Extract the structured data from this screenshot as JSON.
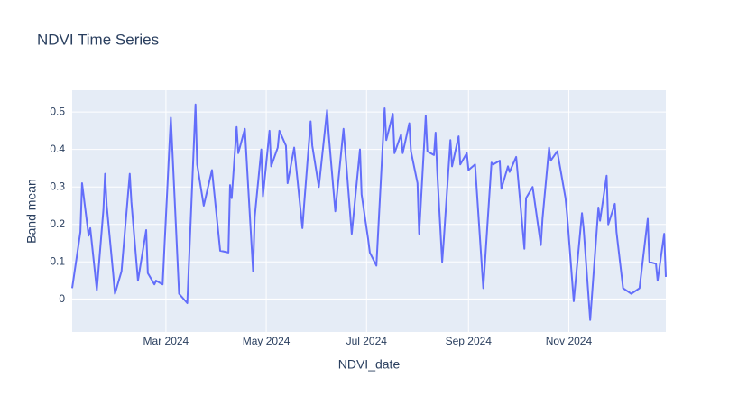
{
  "chart_data": {
    "type": "line",
    "title": "NDVI Time Series",
    "x_label": "NDVI_date",
    "y_label": "Band mean",
    "x": [
      "2024-01-04",
      "2024-01-09",
      "2024-01-10",
      "2024-01-14",
      "2024-01-15",
      "2024-01-19",
      "2024-01-23",
      "2024-01-24",
      "2024-01-25",
      "2024-01-29",
      "2024-01-30",
      "2024-02-03",
      "2024-02-08",
      "2024-02-09",
      "2024-02-13",
      "2024-02-18",
      "2024-02-19",
      "2024-02-23",
      "2024-02-24",
      "2024-02-28",
      "2024-03-03",
      "2024-03-04",
      "2024-03-09",
      "2024-03-14",
      "2024-03-19",
      "2024-03-20",
      "2024-03-24",
      "2024-03-29",
      "2024-04-03",
      "2024-04-08",
      "2024-04-09",
      "2024-04-10",
      "2024-04-13",
      "2024-04-14",
      "2024-04-18",
      "2024-04-23",
      "2024-04-24",
      "2024-04-28",
      "2024-04-29",
      "2024-05-03",
      "2024-05-04",
      "2024-05-08",
      "2024-05-09",
      "2024-05-13",
      "2024-05-14",
      "2024-05-18",
      "2024-05-23",
      "2024-05-24",
      "2024-05-28",
      "2024-05-29",
      "2024-06-02",
      "2024-06-07",
      "2024-06-08",
      "2024-06-12",
      "2024-06-17",
      "2024-06-22",
      "2024-06-27",
      "2024-06-28",
      "2024-07-02",
      "2024-07-03",
      "2024-07-07",
      "2024-07-12",
      "2024-07-13",
      "2024-07-17",
      "2024-07-18",
      "2024-07-22",
      "2024-07-23",
      "2024-07-27",
      "2024-07-28",
      "2024-08-01",
      "2024-08-02",
      "2024-08-06",
      "2024-08-07",
      "2024-08-11",
      "2024-08-12",
      "2024-08-13",
      "2024-08-16",
      "2024-08-17",
      "2024-08-21",
      "2024-08-22",
      "2024-08-26",
      "2024-08-27",
      "2024-08-31",
      "2024-09-01",
      "2024-09-05",
      "2024-09-10",
      "2024-09-15",
      "2024-09-16",
      "2024-09-20",
      "2024-09-21",
      "2024-09-25",
      "2024-09-26",
      "2024-09-30",
      "2024-10-05",
      "2024-10-06",
      "2024-10-10",
      "2024-10-15",
      "2024-10-16",
      "2024-10-20",
      "2024-10-21",
      "2024-10-25",
      "2024-10-30",
      "2024-10-31",
      "2024-11-04",
      "2024-11-09",
      "2024-11-10",
      "2024-11-14",
      "2024-11-19",
      "2024-11-20",
      "2024-11-24",
      "2024-11-25",
      "2024-11-29",
      "2024-11-30",
      "2024-12-04",
      "2024-12-09",
      "2024-12-14",
      "2024-12-19",
      "2024-12-20",
      "2024-12-24",
      "2024-12-25",
      "2024-12-29",
      "2024-12-30"
    ],
    "series": [
      {
        "name": "Band mean",
        "color": "#636efa",
        "values": [
          0.03,
          0.18,
          0.31,
          0.17,
          0.19,
          0.025,
          0.24,
          0.335,
          0.25,
          0.065,
          0.015,
          0.075,
          0.335,
          0.26,
          0.05,
          0.185,
          0.07,
          0.04,
          0.05,
          0.04,
          0.4,
          0.485,
          0.015,
          -0.01,
          0.52,
          0.36,
          0.25,
          0.345,
          0.13,
          0.125,
          0.305,
          0.27,
          0.46,
          0.39,
          0.455,
          0.075,
          0.22,
          0.4,
          0.275,
          0.45,
          0.355,
          0.405,
          0.45,
          0.41,
          0.31,
          0.405,
          0.19,
          0.25,
          0.475,
          0.41,
          0.3,
          0.505,
          0.44,
          0.235,
          0.455,
          0.175,
          0.4,
          0.28,
          0.16,
          0.125,
          0.09,
          0.51,
          0.425,
          0.495,
          0.39,
          0.44,
          0.39,
          0.47,
          0.395,
          0.31,
          0.175,
          0.49,
          0.395,
          0.385,
          0.445,
          0.34,
          0.1,
          0.16,
          0.425,
          0.355,
          0.435,
          0.36,
          0.39,
          0.345,
          0.36,
          0.03,
          0.365,
          0.36,
          0.37,
          0.295,
          0.355,
          0.34,
          0.38,
          0.135,
          0.27,
          0.3,
          0.145,
          0.215,
          0.405,
          0.37,
          0.395,
          0.27,
          0.225,
          -0.005,
          0.23,
          0.19,
          -0.055,
          0.245,
          0.21,
          0.33,
          0.2,
          0.255,
          0.18,
          0.03,
          0.015,
          0.03,
          0.215,
          0.1,
          0.095,
          0.05,
          0.175,
          0.06
        ]
      }
    ],
    "xlim": [
      "2024-01-04",
      "2024-12-30"
    ],
    "xticks": [
      {
        "value": "2024-03-01",
        "label": "Mar 2024"
      },
      {
        "value": "2024-05-01",
        "label": "May 2024"
      },
      {
        "value": "2024-07-01",
        "label": "Jul 2024"
      },
      {
        "value": "2024-09-01",
        "label": "Sep 2024"
      },
      {
        "value": "2024-11-01",
        "label": "Nov 2024"
      }
    ],
    "ylim": [
      -0.087,
      0.558
    ],
    "yticks": [
      0,
      0.1,
      0.2,
      0.3,
      0.4,
      0.5
    ],
    "grid": true
  }
}
